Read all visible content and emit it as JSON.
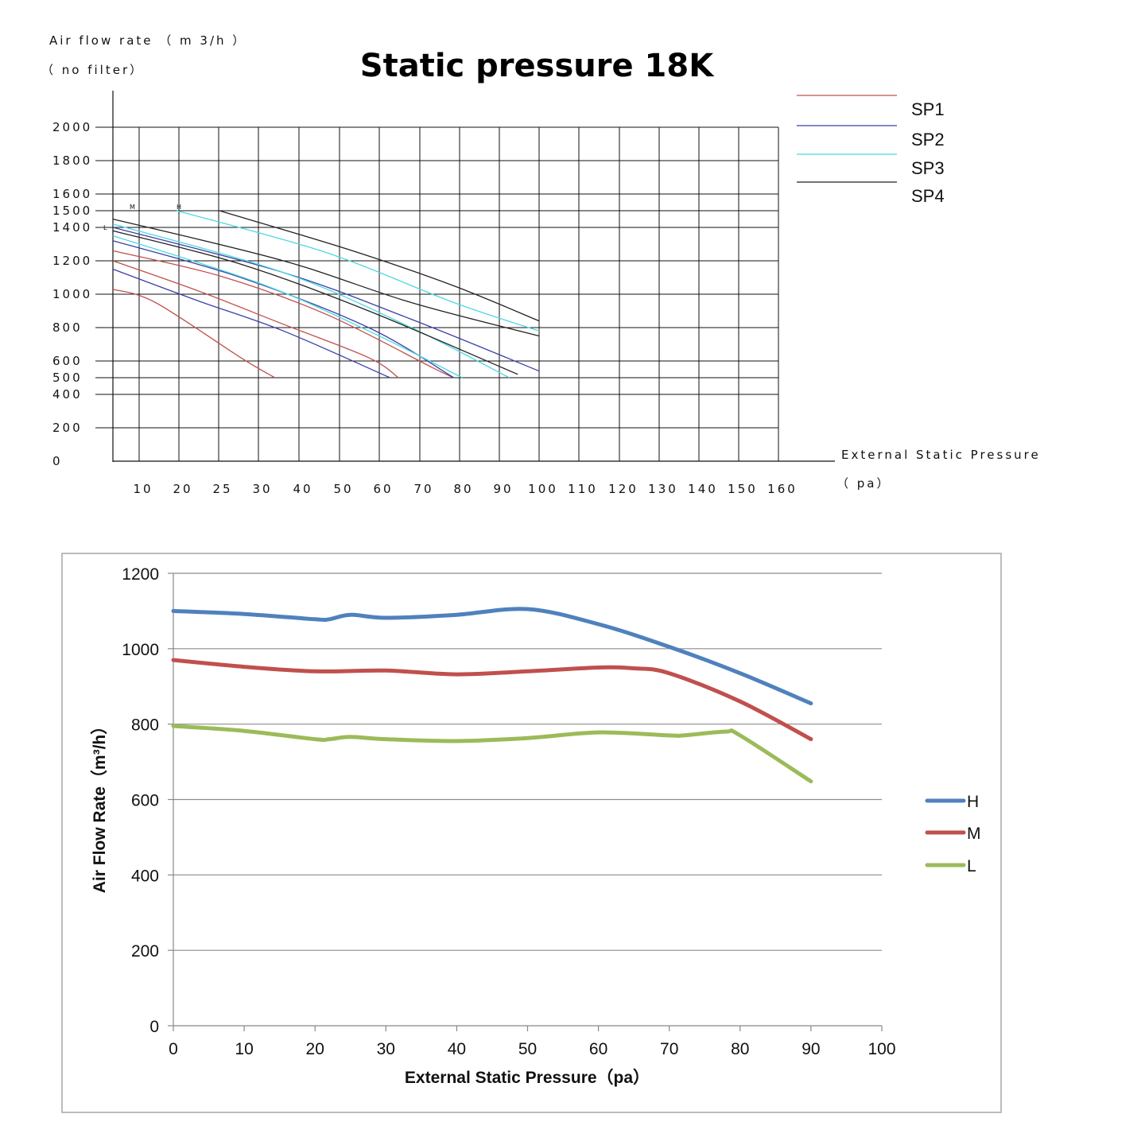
{
  "chart_data": [
    {
      "type": "line",
      "title": "Static pressure 18K",
      "ylabel_line1": "Air flow rate （ m 3/h ）",
      "ylabel_line2": "（ no filter）",
      "xlabel_line1": "External Static Pressure",
      "xlabel_line2": "（ pa）",
      "y_ticks": [
        2000,
        1800,
        1600,
        1500,
        1400,
        1200,
        1000,
        800,
        600,
        500,
        400,
        200,
        0
      ],
      "x_ticks": [
        "10",
        "20",
        "25",
        "30",
        "40",
        "50",
        "60",
        "70",
        "80",
        "90",
        "100",
        "110",
        "120",
        "130",
        "140",
        "150",
        "160"
      ],
      "curve_markers": [
        "M",
        "H",
        "L"
      ],
      "grid": true,
      "legend_position": "top-right",
      "series": [
        {
          "name": "SP1",
          "color": "#c0504d",
          "curves": [
            [
              [
                0,
                1030
              ],
              [
                10,
                950
              ],
              [
                30,
                620
              ],
              [
                38,
                500
              ]
            ],
            [
              [
                0,
                1200
              ],
              [
                20,
                1020
              ],
              [
                40,
                820
              ],
              [
                60,
                620
              ],
              [
                67,
                500
              ]
            ],
            [
              [
                0,
                1260
              ],
              [
                25,
                1110
              ],
              [
                50,
                880
              ],
              [
                75,
                560
              ],
              [
                80,
                500
              ]
            ]
          ]
        },
        {
          "name": "SP2",
          "color": "#3b3fa8",
          "curves": [
            [
              [
                0,
                1150
              ],
              [
                20,
                960
              ],
              [
                40,
                780
              ],
              [
                65,
                500
              ]
            ],
            [
              [
                0,
                1320
              ],
              [
                30,
                1100
              ],
              [
                60,
                800
              ],
              [
                80,
                500
              ]
            ],
            [
              [
                0,
                1400
              ],
              [
                40,
                1130
              ],
              [
                70,
                850
              ],
              [
                100,
                540
              ]
            ]
          ]
        },
        {
          "name": "SP3",
          "color": "#4dd8e0",
          "curves": [
            [
              [
                0,
                1350
              ],
              [
                35,
                1060
              ],
              [
                60,
                780
              ],
              [
                82,
                500
              ]
            ],
            [
              [
                0,
                1420
              ],
              [
                40,
                1130
              ],
              [
                70,
                800
              ],
              [
                93,
                500
              ]
            ],
            [
              [
                15,
                1500
              ],
              [
                50,
                1250
              ],
              [
                80,
                950
              ],
              [
                100,
                780
              ]
            ]
          ]
        },
        {
          "name": "SP4",
          "color": "#222222",
          "curves": [
            [
              [
                0,
                1380
              ],
              [
                30,
                1180
              ],
              [
                60,
                900
              ],
              [
                95,
                520
              ]
            ],
            [
              [
                0,
                1450
              ],
              [
                40,
                1200
              ],
              [
                70,
                950
              ],
              [
                100,
                750
              ]
            ],
            [
              [
                25,
                1500
              ],
              [
                55,
                1270
              ],
              [
                80,
                1050
              ],
              [
                100,
                840
              ]
            ]
          ]
        }
      ]
    },
    {
      "type": "line",
      "xlabel": "External Static Pressure（pa）",
      "ylabel": "Air Flow Rate（m³/h）",
      "ylim": [
        0,
        1200
      ],
      "xlim": [
        0,
        100
      ],
      "y_ticks": [
        0,
        200,
        400,
        600,
        800,
        1000,
        1200
      ],
      "x_ticks": [
        0,
        10,
        20,
        30,
        40,
        50,
        60,
        70,
        80,
        90,
        100
      ],
      "grid": true,
      "legend_position": "right",
      "series": [
        {
          "name": "H",
          "color": "#4f81bd",
          "x": [
            0,
            10,
            20,
            22,
            25,
            30,
            40,
            50,
            60,
            70,
            80,
            90
          ],
          "values": [
            1100,
            1092,
            1078,
            1078,
            1090,
            1082,
            1090,
            1105,
            1065,
            1005,
            935,
            855
          ]
        },
        {
          "name": "M",
          "color": "#c0504d",
          "x": [
            0,
            10,
            20,
            30,
            40,
            50,
            60,
            65,
            70,
            80,
            90
          ],
          "values": [
            970,
            952,
            940,
            942,
            932,
            940,
            950,
            948,
            935,
            860,
            760
          ]
        },
        {
          "name": "L",
          "color": "#9bbb59",
          "x": [
            0,
            10,
            20,
            22,
            25,
            30,
            40,
            50,
            60,
            70,
            72,
            78,
            80,
            90
          ],
          "values": [
            795,
            782,
            760,
            760,
            766,
            760,
            755,
            763,
            778,
            770,
            770,
            780,
            770,
            648
          ]
        }
      ]
    }
  ]
}
